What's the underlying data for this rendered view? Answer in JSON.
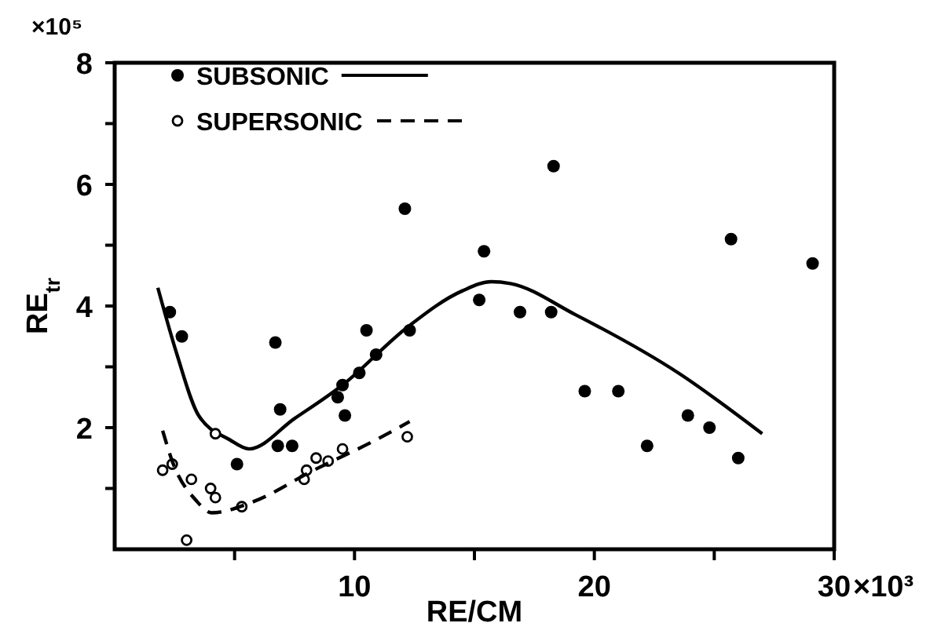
{
  "chart_data": {
    "type": "scatter",
    "xlabel": "RE/CM",
    "ylabel": "RE$_{tr}$",
    "annotations": [
      "×10⁵",
      "×10³"
    ],
    "xlim": [
      0,
      30
    ],
    "ylim": [
      0,
      8
    ],
    "xticks": [
      {
        "value": 5,
        "label": null
      },
      10,
      {
        "value": 15,
        "label": null
      },
      20,
      {
        "value": 25,
        "label": null
      },
      30
    ],
    "yticks": [
      {
        "value": 1,
        "label": null
      },
      2,
      {
        "value": 3,
        "label": null
      },
      4,
      {
        "value": 5,
        "label": null
      },
      6,
      {
        "value": 7,
        "label": null
      },
      8
    ],
    "grid": false,
    "legend": "top left",
    "series": [
      {
        "name": "SUBSONIC",
        "marker": "circle",
        "color": "#000000",
        "x": [
          2.3,
          2.8,
          5.1,
          6.7,
          6.9,
          6.8,
          7.4,
          9.3,
          9.5,
          9.6,
          10.2,
          10.5,
          10.9,
          12.1,
          12.3,
          15.2,
          15.4,
          16.9,
          18.2,
          18.3,
          19.6,
          21.0,
          22.2,
          23.9,
          24.8,
          25.7,
          26.0,
          29.1
        ],
        "values": [
          3.9,
          3.5,
          1.4,
          3.4,
          2.3,
          1.7,
          1.7,
          2.5,
          2.7,
          2.2,
          2.9,
          3.6,
          3.2,
          5.6,
          3.6,
          4.1,
          4.9,
          3.9,
          3.9,
          6.3,
          2.6,
          2.6,
          1.7,
          2.2,
          2.0,
          5.1,
          1.5,
          4.7
        ]
      },
      {
        "type": "line",
        "line_style": "solid",
        "marker": "none",
        "color": "#000000",
        "x": [
          1.8,
          2.6,
          3.5,
          4.8,
          5.6,
          7.5,
          9.5,
          12.2,
          14.5,
          15.7,
          16.5,
          19.2,
          23.5,
          27.0
        ],
        "values": [
          4.3,
          3.2,
          2.2,
          1.8,
          1.65,
          2.15,
          2.7,
          3.65,
          4.25,
          4.4,
          4.37,
          3.86,
          2.9,
          1.9
        ]
      },
      {
        "name": "SUPERSONIC",
        "marker": "circle-open",
        "color": "#000000",
        "x": [
          2.0,
          2.4,
          3.0,
          3.2,
          4.0,
          4.2,
          4.2,
          5.3,
          7.9,
          8.0,
          8.4,
          8.9,
          9.5,
          12.2
        ],
        "values": [
          1.3,
          1.4,
          0.15,
          1.15,
          1.0,
          0.85,
          1.9,
          0.7,
          1.15,
          1.3,
          1.5,
          1.45,
          1.65,
          1.85
        ]
      },
      {
        "type": "line",
        "line_style": "dashed",
        "marker": "none",
        "color": "#000000",
        "x": [
          2.0,
          2.4,
          3.4,
          4.05,
          5.7,
          8.3,
          10.9,
          12.3
        ],
        "values": [
          1.95,
          1.45,
          0.8,
          0.6,
          0.77,
          1.3,
          1.8,
          2.1
        ]
      }
    ]
  }
}
